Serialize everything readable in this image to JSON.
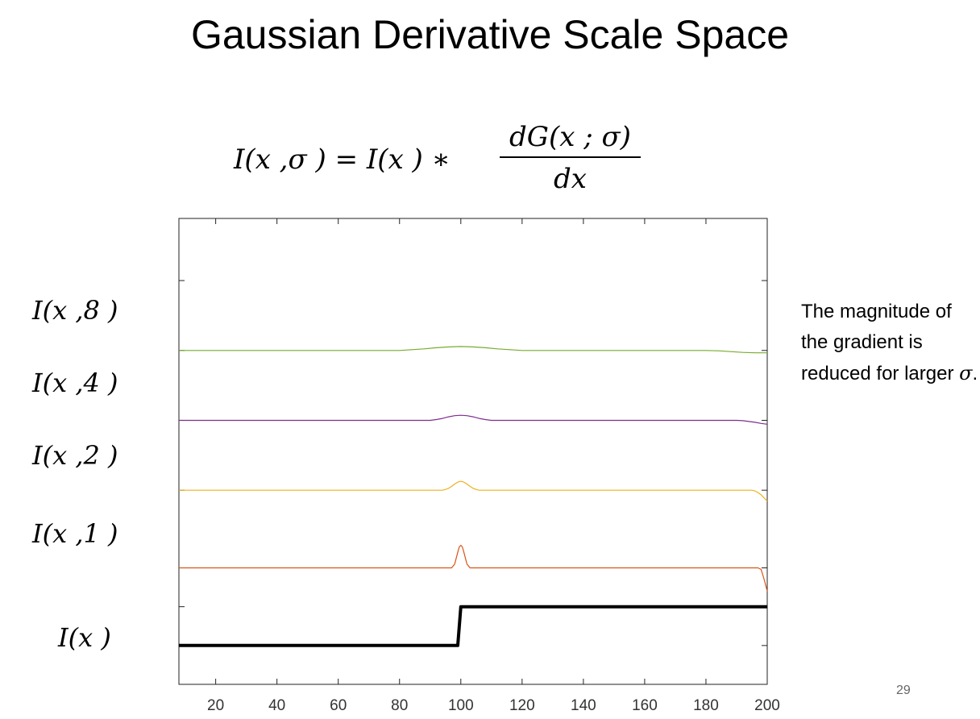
{
  "slide": {
    "title": "Gaussian Derivative Scale Space",
    "equation": {
      "lhs": "I(x ,σ ) = I(x ) ∗",
      "numerator": "dG(x ; σ)",
      "denominator": "dx"
    },
    "note": {
      "text": "The magnitude of the gradient is reduced for larger",
      "symbol": "σ",
      "end": "."
    },
    "page_number": "29"
  },
  "chart_data": {
    "type": "line",
    "xlim": [
      8,
      200
    ],
    "xticks": [
      20,
      40,
      60,
      80,
      100,
      120,
      140,
      160,
      180,
      200
    ],
    "ylim": [
      -0.5,
      5.5
    ],
    "grid": false,
    "series": [
      {
        "label": "I(x ,8 )",
        "color": "#77ac30",
        "width": 1.2,
        "x": [
          8,
          80,
          84,
          88,
          92,
          96,
          100,
          104,
          108,
          112,
          116,
          120,
          180,
          184,
          188,
          192,
          196,
          200
        ],
        "y": [
          3.8,
          3.8,
          3.81,
          3.82,
          3.835,
          3.845,
          3.85,
          3.845,
          3.835,
          3.82,
          3.81,
          3.8,
          3.8,
          3.795,
          3.785,
          3.775,
          3.77,
          3.77
        ]
      },
      {
        "label": "I(x ,4 )",
        "color": "#7e2f8e",
        "width": 1.2,
        "x": [
          8,
          90,
          92,
          94,
          96,
          98,
          100,
          102,
          104,
          106,
          108,
          110,
          190,
          192,
          194,
          196,
          198,
          200
        ],
        "y": [
          2.9,
          2.9,
          2.91,
          2.925,
          2.945,
          2.96,
          2.965,
          2.96,
          2.945,
          2.925,
          2.91,
          2.9,
          2.9,
          2.895,
          2.885,
          2.875,
          2.86,
          2.85
        ]
      },
      {
        "label": "I(x ,2 )",
        "color": "#edb120",
        "width": 1.2,
        "x": [
          8,
          94,
          95,
          96,
          97,
          98,
          99,
          100,
          101,
          102,
          103,
          104,
          105,
          106,
          195,
          196,
          197,
          198,
          199,
          200
        ],
        "y": [
          2.0,
          2.0,
          2.01,
          2.025,
          2.05,
          2.08,
          2.105,
          2.115,
          2.105,
          2.08,
          2.05,
          2.025,
          2.01,
          2.0,
          2.0,
          1.99,
          1.97,
          1.94,
          1.9,
          1.86
        ]
      },
      {
        "label": "I(x ,1 )",
        "color": "#d95319",
        "width": 1.2,
        "x": [
          8,
          97,
          98,
          99,
          99.5,
          100,
          100.5,
          101,
          102,
          103,
          197,
          198,
          199,
          200
        ],
        "y": [
          1.0,
          1.0,
          1.05,
          1.2,
          1.27,
          1.29,
          1.27,
          1.2,
          1.05,
          1.0,
          1.0,
          0.98,
          0.85,
          0.7
        ]
      },
      {
        "label": "I(x )",
        "color": "#000000",
        "width": 4,
        "x": [
          8,
          99,
          100,
          200
        ],
        "y": [
          0.0,
          0.0,
          0.5,
          0.5
        ]
      }
    ]
  }
}
